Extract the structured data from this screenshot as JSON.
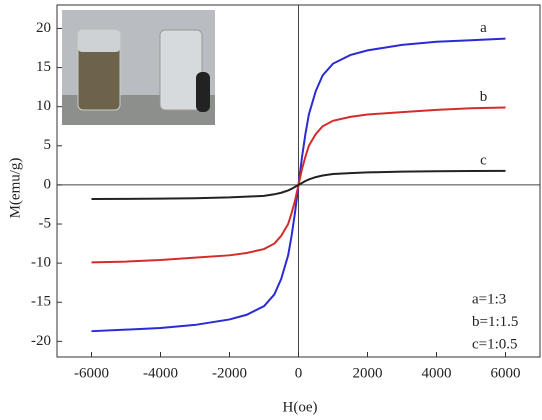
{
  "chart_data": {
    "type": "line",
    "x_label": "H(oe)",
    "y_label": "M(emu/g)",
    "x": [
      -6000,
      -5000,
      -4000,
      -3000,
      -2000,
      -1500,
      -1000,
      -700,
      -500,
      -300,
      -200,
      -100,
      0,
      100,
      200,
      300,
      500,
      700,
      1000,
      1500,
      2000,
      3000,
      4000,
      5000,
      6000
    ],
    "series": [
      {
        "name": "a",
        "color": "#2b2bd6",
        "values": [
          -18.7,
          -18.5,
          -18.3,
          -17.9,
          -17.2,
          -16.6,
          -15.5,
          -14.0,
          -12.0,
          -9.0,
          -6.5,
          -3.5,
          0,
          3.5,
          6.5,
          9.0,
          12.0,
          14.0,
          15.5,
          16.6,
          17.2,
          17.9,
          18.3,
          18.5,
          18.7
        ]
      },
      {
        "name": "b",
        "color": "#d62b2b",
        "values": [
          -9.9,
          -9.8,
          -9.6,
          -9.3,
          -9.0,
          -8.7,
          -8.2,
          -7.5,
          -6.5,
          -5.0,
          -3.6,
          -2.0,
          0,
          2.0,
          3.6,
          5.0,
          6.5,
          7.5,
          8.2,
          8.7,
          9.0,
          9.3,
          9.6,
          9.8,
          9.9
        ]
      },
      {
        "name": "c",
        "color": "#222222",
        "values": [
          -1.8,
          -1.78,
          -1.75,
          -1.7,
          -1.6,
          -1.5,
          -1.4,
          -1.2,
          -1.0,
          -0.7,
          -0.5,
          -0.25,
          0,
          0.25,
          0.5,
          0.7,
          1.0,
          1.2,
          1.4,
          1.5,
          1.6,
          1.7,
          1.75,
          1.78,
          1.8
        ]
      }
    ],
    "notes": [
      "a=1:3",
      "b=1:1.5",
      "c=1:0.5"
    ],
    "xlim": [
      -7000,
      7000
    ],
    "xticks": [
      -6000,
      -4000,
      -2000,
      0,
      2000,
      4000,
      6000
    ],
    "ylim": [
      -22,
      23
    ],
    "yticks": [
      -20,
      -15,
      -10,
      -5,
      0,
      5,
      10,
      15,
      20
    ]
  }
}
